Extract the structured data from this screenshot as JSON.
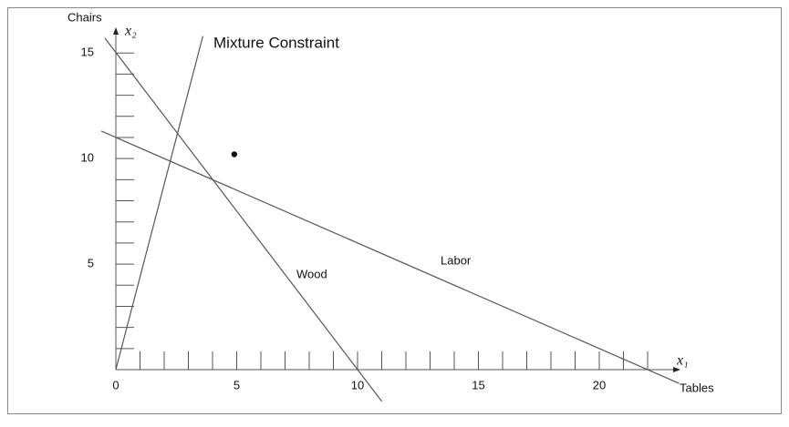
{
  "chart_data": {
    "type": "line",
    "x_label": "Tables",
    "y_label": "Chairs",
    "x_symbol": "x₁",
    "y_symbol": "x₂",
    "xlim": [
      0,
      23
    ],
    "ylim": [
      0,
      16
    ],
    "xticks": [
      0,
      5,
      10,
      15,
      20
    ],
    "yticks": [
      5,
      10,
      15
    ],
    "color": "#555555",
    "series": [
      {
        "name": "Mixture Constraint",
        "x": [
          0,
          3.6
        ],
        "values": [
          0,
          15.8
        ]
      },
      {
        "name": "Wood",
        "x": [
          -0.45,
          11
        ],
        "values": [
          15.7,
          -1.5
        ]
      },
      {
        "name": "Labor",
        "x": [
          -0.6,
          23.3
        ],
        "values": [
          11.3,
          -0.65
        ]
      }
    ],
    "points": {
      "x": [
        4.9
      ],
      "values": [
        10.2
      ]
    }
  }
}
